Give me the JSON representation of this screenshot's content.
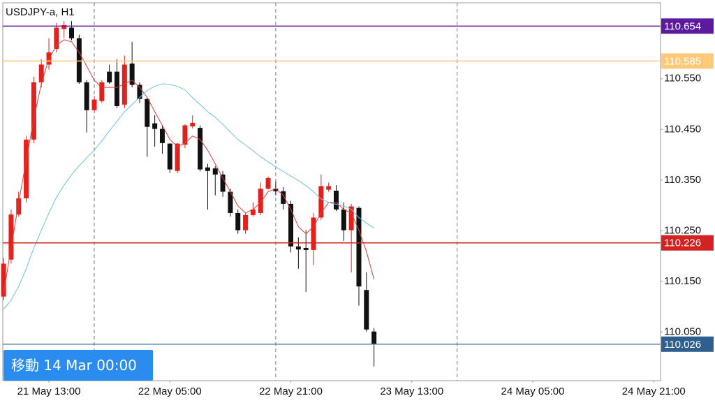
{
  "chart_data": {
    "type": "candlestick",
    "title": "USDJPY-a, H1",
    "up_color": "#e3201b",
    "down_color": "#111111",
    "x": [
      0,
      1,
      2,
      3,
      4,
      5,
      6,
      7,
      8,
      9,
      10,
      11,
      12,
      13,
      14,
      15,
      16,
      17,
      18,
      19,
      20,
      21,
      22,
      23,
      24,
      25,
      26,
      27,
      28,
      29,
      30,
      31,
      32,
      33,
      34,
      35,
      36,
      37,
      38,
      39,
      40,
      41,
      42,
      43,
      44,
      45,
      46,
      47,
      48,
      49
    ],
    "open": [
      110.12,
      110.193,
      110.282,
      110.314,
      110.43,
      110.543,
      110.578,
      110.609,
      110.648,
      110.651,
      110.63,
      110.543,
      110.488,
      110.506,
      110.564,
      110.564,
      110.499,
      110.58,
      110.538,
      110.51,
      110.462,
      110.451,
      110.422,
      110.368,
      110.42,
      110.456,
      110.453,
      110.375,
      110.373,
      110.361,
      110.327,
      110.285,
      110.251,
      110.281,
      110.285,
      110.333,
      110.333,
      110.328,
      110.303,
      110.219,
      110.216,
      110.212,
      110.276,
      110.331,
      110.329,
      110.292,
      110.251,
      110.295,
      110.133,
      110.051
    ],
    "high": [
      110.196,
      110.292,
      110.327,
      110.437,
      110.554,
      110.589,
      110.63,
      110.66,
      110.664,
      110.664,
      110.637,
      110.547,
      110.516,
      110.547,
      110.578,
      110.589,
      110.596,
      110.623,
      110.543,
      110.513,
      110.478,
      110.458,
      110.423,
      110.423,
      110.46,
      110.478,
      110.458,
      110.382,
      110.378,
      110.368,
      110.333,
      110.292,
      110.285,
      110.306,
      110.345,
      110.357,
      110.347,
      110.336,
      110.309,
      110.237,
      110.251,
      110.285,
      110.361,
      110.345,
      110.34,
      110.306,
      110.303,
      110.298,
      110.168,
      110.058
    ],
    "low": [
      110.113,
      110.185,
      110.278,
      110.306,
      110.423,
      110.533,
      110.568,
      110.602,
      110.63,
      110.626,
      110.54,
      110.444,
      110.482,
      110.502,
      110.54,
      110.492,
      110.492,
      110.533,
      110.502,
      110.396,
      110.416,
      110.402,
      110.364,
      110.364,
      110.413,
      110.452,
      110.367,
      110.292,
      110.32,
      110.317,
      110.278,
      110.244,
      110.244,
      110.278,
      110.281,
      110.331,
      110.32,
      110.292,
      110.207,
      110.175,
      110.129,
      110.182,
      110.271,
      110.327,
      110.289,
      110.23,
      110.168,
      110.102,
      110.051,
      109.982
    ],
    "close": [
      110.185,
      110.282,
      110.314,
      110.43,
      110.543,
      110.578,
      110.602,
      110.651,
      110.656,
      110.63,
      110.543,
      110.488,
      110.509,
      110.543,
      110.543,
      110.496,
      110.578,
      110.538,
      110.51,
      110.455,
      110.451,
      110.423,
      110.371,
      110.422,
      110.458,
      110.463,
      110.371,
      110.368,
      110.361,
      110.327,
      110.285,
      110.251,
      110.281,
      110.292,
      110.333,
      110.354,
      110.328,
      110.303,
      110.219,
      110.213,
      110.212,
      110.276,
      110.338,
      110.338,
      110.292,
      110.251,
      110.298,
      110.14,
      110.055,
      110.026
    ],
    "lines": [
      {
        "color": "#e53935",
        "values": [
          110.127,
          110.216,
          110.306,
          110.389,
          110.471,
          110.54,
          110.589,
          110.616,
          110.627,
          110.623,
          110.602,
          110.575,
          110.547,
          110.533,
          110.533,
          110.533,
          110.54,
          110.547,
          110.533,
          110.513,
          110.485,
          110.458,
          110.43,
          110.416,
          110.423,
          110.437,
          110.43,
          110.409,
          110.382,
          110.354,
          110.327,
          110.299,
          110.285,
          110.292,
          110.306,
          110.327,
          110.333,
          110.32,
          110.292,
          110.258,
          110.244,
          110.258,
          110.285,
          110.306,
          110.306,
          110.292,
          110.285,
          110.251,
          110.209,
          110.154
        ]
      },
      {
        "color": "#6cc3dd",
        "values": [
          110.095,
          110.113,
          110.14,
          110.175,
          110.216,
          110.251,
          110.285,
          110.316,
          110.34,
          110.361,
          110.378,
          110.394,
          110.409,
          110.427,
          110.447,
          110.466,
          110.485,
          110.499,
          110.513,
          110.527,
          110.535,
          110.54,
          110.539,
          110.535,
          110.528,
          110.513,
          110.499,
          110.485,
          110.474,
          110.46,
          110.445,
          110.43,
          110.419,
          110.408,
          110.396,
          110.386,
          110.376,
          110.367,
          110.358,
          110.349,
          110.339,
          110.327,
          110.313,
          110.306,
          110.302,
          110.299,
          110.292,
          110.276,
          110.265,
          110.255
        ]
      }
    ],
    "hlines": [
      {
        "value": 110.654,
        "color": "#5c1a9e",
        "label_color": "#5c1a9e"
      },
      {
        "value": 110.585,
        "color": "#ffc97a",
        "label_color": "#ffc97a"
      },
      {
        "value": 110.226,
        "color": "#d32222",
        "label_color": "#d32222"
      },
      {
        "value": 110.026,
        "color": "#5a7fa6",
        "label_color": "#2f5f8f"
      }
    ],
    "xlim": [
      -0.1,
      86.9
    ],
    "ylim": [
      109.954,
      110.7
    ],
    "yticks": [
      {
        "value": 110.55,
        "label": "110.550"
      },
      {
        "value": 110.45,
        "label": "110.450"
      },
      {
        "value": 110.35,
        "label": "110.350"
      },
      {
        "value": 110.25,
        "label": "110.250"
      },
      {
        "value": 110.15,
        "label": "110.150"
      },
      {
        "value": 110.05,
        "label": "110.050"
      }
    ],
    "xticks": [
      {
        "value": 6,
        "label": "21 May 13:00"
      },
      {
        "value": 22,
        "label": "22 May 05:00"
      },
      {
        "value": 38,
        "label": "22 May 21:00"
      },
      {
        "value": 54,
        "label": "23 May 13:00"
      },
      {
        "value": 70,
        "label": "24 May 05:00"
      },
      {
        "value": 86,
        "label": "24 May 21:00"
      }
    ],
    "x_gridlines": [
      12,
      36,
      60
    ]
  },
  "navigation_button": {
    "label": "移動 14 Mar 00:00"
  }
}
